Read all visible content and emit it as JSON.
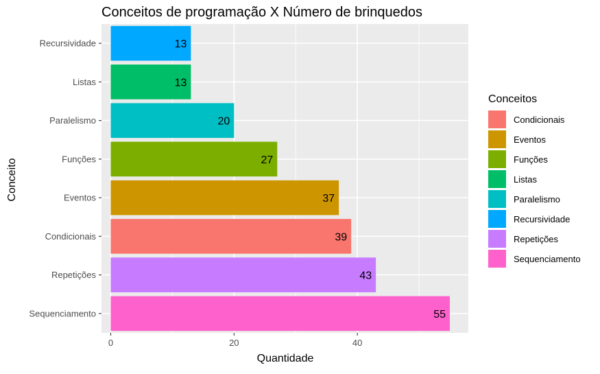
{
  "chart_data": {
    "type": "bar",
    "orientation": "horizontal",
    "title": "Conceitos de programação X Número de brinquedos",
    "xlabel": "Quantidade",
    "ylabel": "Conceito",
    "categories": [
      "Recursividade",
      "Listas",
      "Paralelismo",
      "Funções",
      "Eventos",
      "Condicionais",
      "Repetições",
      "Sequenciamento"
    ],
    "values": [
      13,
      13,
      20,
      27,
      37,
      39,
      43,
      55
    ],
    "bar_colors": [
      "#00A9FF",
      "#00BE67",
      "#00BFC4",
      "#7CAE00",
      "#CD9600",
      "#F8766D",
      "#C77CFF",
      "#FF61CC"
    ],
    "xlim": [
      -1.5,
      58
    ],
    "xticks": [
      0,
      20,
      40
    ],
    "grid": true,
    "legend": {
      "title": "Conceitos",
      "position": "right",
      "items": [
        {
          "label": "Condicionais",
          "color": "#F8766D"
        },
        {
          "label": "Eventos",
          "color": "#CD9600"
        },
        {
          "label": "Funções",
          "color": "#7CAE00"
        },
        {
          "label": "Listas",
          "color": "#00BE67"
        },
        {
          "label": "Paralelismo",
          "color": "#00BFC4"
        },
        {
          "label": "Recursividade",
          "color": "#00A9FF"
        },
        {
          "label": "Repetições",
          "color": "#C77CFF"
        },
        {
          "label": "Sequenciamento",
          "color": "#FF61CC"
        }
      ]
    },
    "panel_background": "#EBEBEB",
    "gridline_color": "#FFFFFF"
  }
}
